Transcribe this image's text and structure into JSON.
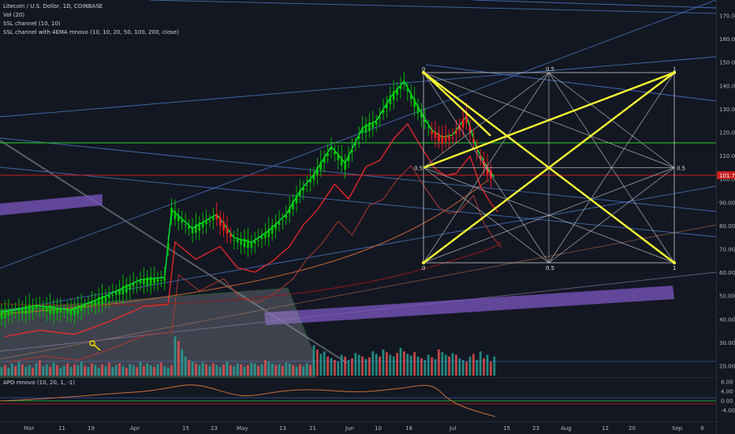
{
  "legend": {
    "symbol": "Litecoin / U.S. Dollar, 1D, COINBASE",
    "vol": "Vol (20)",
    "ssl": "SSL channel (10, 10)",
    "ssl_ema": "SSL channel with 4EMA mnovo (10, 10, 20, 50, 100, 200, close)"
  },
  "price_badge": "101.75",
  "apo_label": "APO mnovo (10, 20, 1, -1)",
  "colors": {
    "background": "#131722",
    "up": "#26a69a",
    "down": "#ef5350",
    "green_candle": "#00c800",
    "red_candle": "#ff2020",
    "fib": "#ffff33",
    "highlight": "#7e57c2",
    "trend": "#4a78c8",
    "grid_box": "#c8c8c8"
  },
  "gann_box": {
    "top_labels": [
      "0",
      "0.5",
      "1"
    ],
    "mid_labels": [
      "0.5",
      "0.5"
    ],
    "bottom_labels": [
      "0",
      "0.5",
      "1"
    ]
  },
  "chart_data": [
    {
      "type": "candlestick",
      "title": "Litecoin / U.S. Dollar, 1D, COINBASE",
      "ylim": [
        18,
        178
      ],
      "y_ticks": [
        20,
        30,
        40,
        50,
        60,
        70,
        80,
        90,
        100,
        110,
        120,
        130,
        140,
        150,
        160,
        170
      ],
      "y_tick_labels": [
        "20.00",
        "30.00",
        "40.00",
        "50.00",
        "60.00",
        "70.00",
        "80.00",
        "90.00",
        "100.00",
        "110.00",
        "120.00",
        "130.00",
        "140.00",
        "150.00",
        "160.00",
        "170.00"
      ],
      "x_ticks": [
        "Mar",
        "11",
        "19",
        "Apr",
        "15",
        "23",
        "May",
        "13",
        "21",
        "Jun",
        "10",
        "18",
        "Jul",
        "15",
        "23",
        "Aug",
        "12",
        "20",
        "Sep",
        "9"
      ],
      "close_path": [
        [
          0,
          42
        ],
        [
          10,
          45
        ],
        [
          20,
          43
        ],
        [
          30,
          49
        ],
        [
          40,
          56
        ],
        [
          47,
          57
        ],
        [
          49,
          86
        ],
        [
          55,
          78
        ],
        [
          62,
          84
        ],
        [
          67,
          74
        ],
        [
          72,
          72
        ],
        [
          77,
          77
        ],
        [
          82,
          84
        ],
        [
          86,
          94
        ],
        [
          90,
          101
        ],
        [
          95,
          113
        ],
        [
          99,
          106
        ],
        [
          104,
          121
        ],
        [
          108,
          124
        ],
        [
          112,
          134
        ],
        [
          116,
          141
        ],
        [
          120,
          130
        ],
        [
          124,
          120
        ],
        [
          127,
          117
        ],
        [
          130,
          118
        ],
        [
          134,
          126
        ],
        [
          137,
          112
        ],
        [
          140,
          104
        ],
        [
          142,
          100
        ]
      ],
      "volume": [
        10,
        12,
        9,
        14,
        11,
        16,
        13,
        10,
        12,
        9,
        14,
        18,
        11,
        13,
        10,
        15,
        12,
        9,
        11,
        14,
        10,
        13,
        12,
        16,
        11,
        10,
        14,
        12,
        9,
        13,
        11,
        15,
        10,
        12,
        14,
        11,
        9,
        13,
        12,
        10,
        16,
        11,
        14,
        12,
        10,
        13,
        15,
        11,
        9,
        12,
        45,
        40,
        30,
        22,
        18,
        16,
        14,
        12,
        15,
        13,
        11,
        14,
        12,
        10,
        13,
        16,
        12,
        11,
        14,
        13,
        10,
        12,
        15,
        14,
        11,
        13,
        18,
        16,
        14,
        12,
        13,
        11,
        15,
        14,
        12,
        10,
        13,
        11,
        14,
        12,
        35,
        30,
        25,
        28,
        22,
        20,
        18,
        16,
        24,
        22,
        18,
        20,
        26,
        24,
        22,
        19,
        21,
        28,
        25,
        22,
        30,
        27,
        24,
        22,
        26,
        32,
        28,
        25,
        23,
        27,
        22,
        20,
        18,
        24,
        21,
        19,
        30,
        27,
        24,
        22,
        26,
        24,
        20,
        18,
        16,
        22,
        25,
        18,
        28,
        20,
        24,
        16,
        22
      ]
    },
    {
      "type": "line",
      "title": "APO mnovo (10, 20, 1, -1)",
      "ylim": [
        -6,
        9
      ],
      "y_ticks": [
        8,
        4,
        0,
        -4
      ],
      "y_tick_labels": [
        "8.00",
        "4.00",
        "0.00",
        "-4.00"
      ]
    }
  ]
}
